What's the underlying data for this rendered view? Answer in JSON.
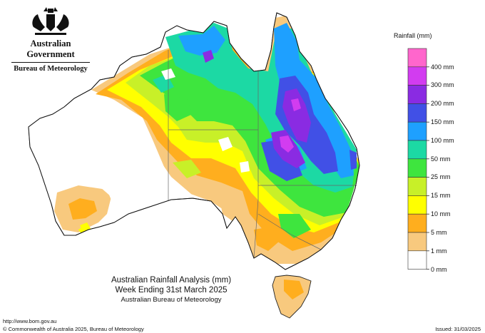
{
  "header": {
    "government": "Australian Government",
    "bureau": "Bureau of Meteorology"
  },
  "legend": {
    "title": "Rainfall (mm)",
    "levels": [
      {
        "label": "400 mm",
        "color": "#ff66cc"
      },
      {
        "label": "300 mm",
        "color": "#d23cf0"
      },
      {
        "label": "200 mm",
        "color": "#8a2be2"
      },
      {
        "label": "150 mm",
        "color": "#4150e6"
      },
      {
        "label": "100 mm",
        "color": "#1ea0ff"
      },
      {
        "label": "50 mm",
        "color": "#1cd9a4"
      },
      {
        "label": "25 mm",
        "color": "#3ee53e"
      },
      {
        "label": "15 mm",
        "color": "#c8f028"
      },
      {
        "label": "10 mm",
        "color": "#ffff00"
      },
      {
        "label": "5 mm",
        "color": "#ffae1e"
      },
      {
        "label": "1 mm",
        "color": "#f8c97e"
      },
      {
        "label": "0 mm",
        "color": "#ffffff"
      }
    ]
  },
  "map_title": {
    "line1": "Australian Rainfall Analysis (mm)",
    "line2": "Week Ending 31st March 2025",
    "line3": "Australian Bureau of Meteorology"
  },
  "footer": {
    "url": "http://www.bom.gov.au",
    "copyright": "© Commonwealth of Australia 2025, Bureau of Meteorology",
    "issued": "Issued: 31/03/2025"
  }
}
